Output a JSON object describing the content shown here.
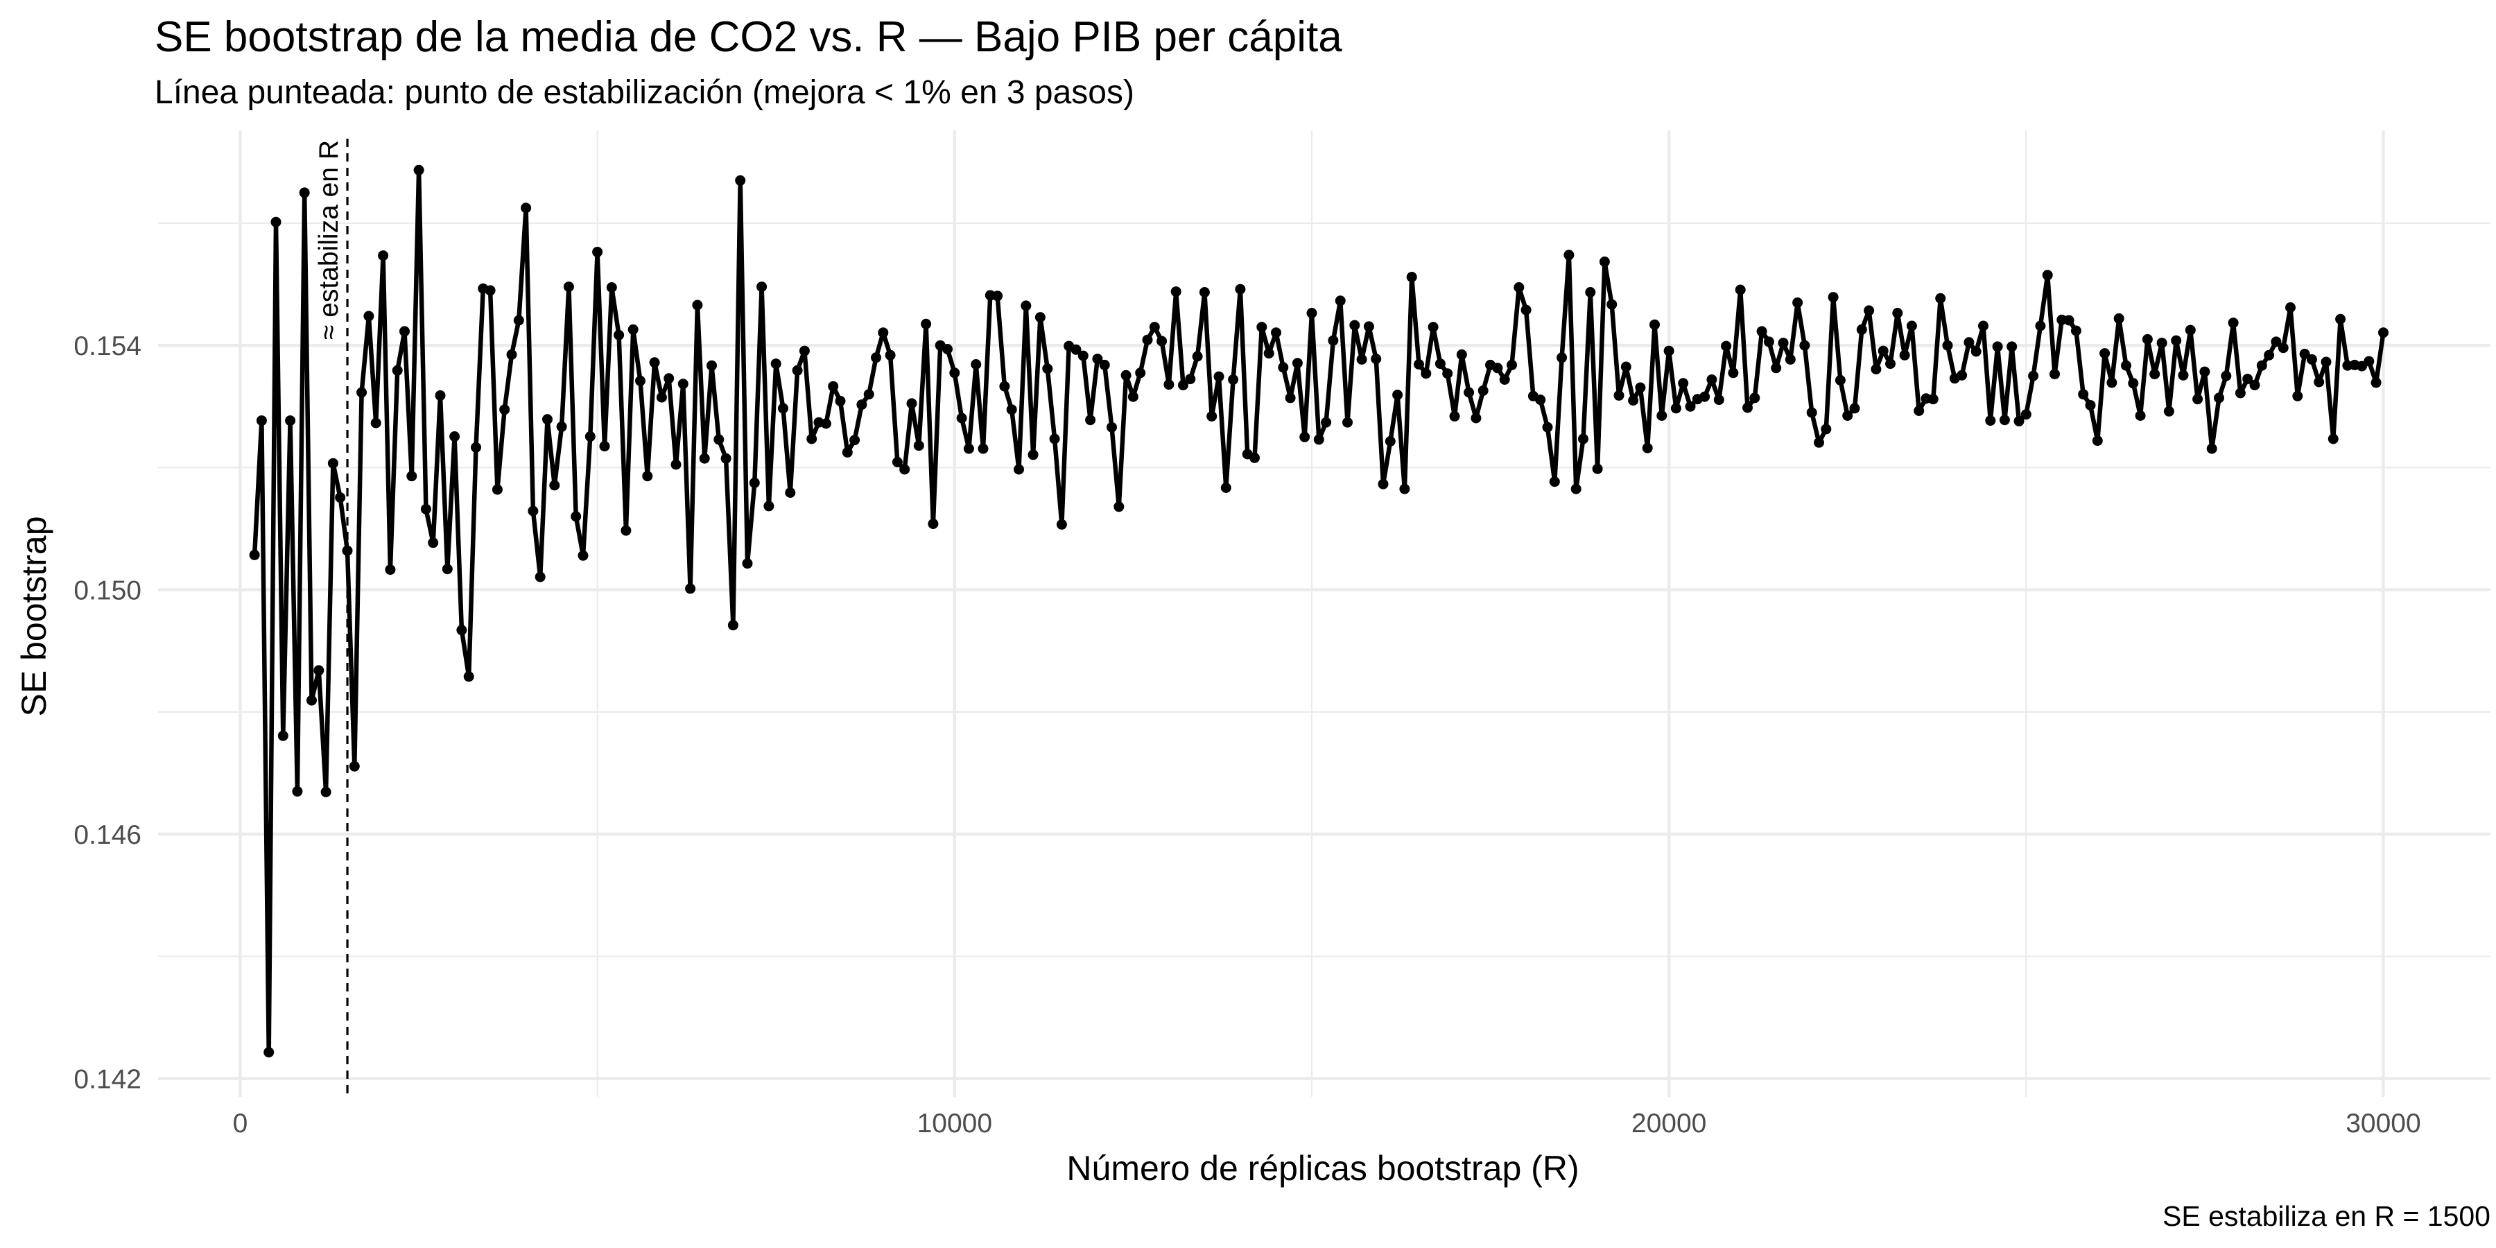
{
  "chart_data": {
    "type": "line",
    "title": "SE bootstrap de la media de CO2 vs. R — Bajo PIB per cápita",
    "subtitle": "Línea punteada: punto de estabilización (mejora < 1% en 3 pasos)",
    "caption": "SE estabiliza en R = 1500",
    "xlabel": "Número de réplicas bootstrap (R)",
    "ylabel": "SE bootstrap",
    "xlim": [
      -1150,
      31500
    ],
    "ylim": [
      0.1417,
      0.15752
    ],
    "xticks": [
      0,
      10000,
      20000,
      30000
    ],
    "xtick_labels": [
      "0",
      "10000",
      "20000",
      "30000"
    ],
    "yticks": [
      0.142,
      0.146,
      0.15,
      0.154
    ],
    "ytick_labels": [
      "0.142",
      "0.146",
      "0.150",
      "0.154"
    ],
    "grid": true,
    "vline": {
      "x": 1500,
      "label": "≈ estabiliza en R"
    },
    "colors": {
      "line": "#000000",
      "grid": "#ebebeb",
      "tick_text": "#4d4d4d"
    },
    "series": [
      {
        "points": [
          [
            200,
            0.15057
          ],
          [
            300,
            0.15277
          ],
          [
            400,
            0.14243
          ],
          [
            500,
            0.15602
          ],
          [
            600,
            0.14761
          ],
          [
            700,
            0.15277
          ],
          [
            800,
            0.1467
          ],
          [
            900,
            0.1565
          ],
          [
            1000,
            0.14819
          ],
          [
            1100,
            0.14868
          ],
          [
            1200,
            0.14669
          ],
          [
            1300,
            0.15207
          ],
          [
            1400,
            0.15151
          ],
          [
            1500,
            0.15064
          ],
          [
            1600,
            0.14711
          ],
          [
            1700,
            0.15323
          ],
          [
            1800,
            0.15448
          ],
          [
            1900,
            0.15273
          ],
          [
            2000,
            0.15547
          ],
          [
            2100,
            0.15033
          ],
          [
            2200,
            0.15359
          ],
          [
            2300,
            0.15423
          ],
          [
            2400,
            0.15186
          ],
          [
            2500,
            0.15687
          ],
          [
            2600,
            0.15132
          ],
          [
            2700,
            0.15077
          ],
          [
            2800,
            0.15318
          ],
          [
            2900,
            0.15034
          ],
          [
            3000,
            0.15251
          ],
          [
            3100,
            0.14934
          ],
          [
            3200,
            0.14858
          ],
          [
            3300,
            0.15233
          ],
          [
            3400,
            0.15493
          ],
          [
            3500,
            0.1549
          ],
          [
            3600,
            0.15164
          ],
          [
            3700,
            0.15295
          ],
          [
            3800,
            0.15385
          ],
          [
            3900,
            0.15441
          ],
          [
            4000,
            0.15625
          ],
          [
            4100,
            0.15129
          ],
          [
            4200,
            0.15021
          ],
          [
            4300,
            0.15279
          ],
          [
            4400,
            0.15171
          ],
          [
            4500,
            0.15267
          ],
          [
            4600,
            0.15496
          ],
          [
            4700,
            0.1512
          ],
          [
            4800,
            0.15056
          ],
          [
            4900,
            0.15251
          ],
          [
            5000,
            0.15553
          ],
          [
            5100,
            0.15235
          ],
          [
            5200,
            0.15495
          ],
          [
            5300,
            0.15417
          ],
          [
            5400,
            0.15097
          ],
          [
            5500,
            0.15426
          ],
          [
            5600,
            0.15342
          ],
          [
            5700,
            0.15186
          ],
          [
            5800,
            0.15372
          ],
          [
            5900,
            0.15315
          ],
          [
            6000,
            0.15346
          ],
          [
            6100,
            0.15205
          ],
          [
            6200,
            0.15337
          ],
          [
            6300,
            0.15002
          ],
          [
            6400,
            0.15466
          ],
          [
            6500,
            0.15215
          ],
          [
            6600,
            0.15367
          ],
          [
            6700,
            0.15246
          ],
          [
            6800,
            0.15215
          ],
          [
            6900,
            0.14942
          ],
          [
            7000,
            0.1567
          ],
          [
            7100,
            0.15043
          ],
          [
            7200,
            0.15175
          ],
          [
            7300,
            0.15496
          ],
          [
            7400,
            0.15137
          ],
          [
            7500,
            0.1537
          ],
          [
            7600,
            0.15297
          ],
          [
            7700,
            0.15159
          ],
          [
            7800,
            0.15359
          ],
          [
            7900,
            0.15391
          ],
          [
            8000,
            0.15247
          ],
          [
            8100,
            0.15274
          ],
          [
            8200,
            0.15272
          ],
          [
            8300,
            0.15333
          ],
          [
            8400,
            0.15309
          ],
          [
            8500,
            0.15225
          ],
          [
            8600,
            0.15245
          ],
          [
            8700,
            0.15303
          ],
          [
            8800,
            0.1532
          ],
          [
            8900,
            0.1538
          ],
          [
            9000,
            0.15421
          ],
          [
            9100,
            0.15384
          ],
          [
            9200,
            0.15209
          ],
          [
            9300,
            0.15197
          ],
          [
            9400,
            0.15305
          ],
          [
            9500,
            0.15236
          ],
          [
            9600,
            0.15435
          ],
          [
            9700,
            0.15108
          ],
          [
            9800,
            0.154
          ],
          [
            9900,
            0.15394
          ],
          [
            10000,
            0.15355
          ],
          [
            10100,
            0.15281
          ],
          [
            10200,
            0.15231
          ],
          [
            10300,
            0.15369
          ],
          [
            10400,
            0.15231
          ],
          [
            10500,
            0.15482
          ],
          [
            10600,
            0.15481
          ],
          [
            10700,
            0.15333
          ],
          [
            10800,
            0.15295
          ],
          [
            10900,
            0.15197
          ],
          [
            11000,
            0.15465
          ],
          [
            11100,
            0.15221
          ],
          [
            11200,
            0.15446
          ],
          [
            11300,
            0.15362
          ],
          [
            11400,
            0.15247
          ],
          [
            11500,
            0.15107
          ],
          [
            11600,
            0.15399
          ],
          [
            11700,
            0.15393
          ],
          [
            11800,
            0.15383
          ],
          [
            11900,
            0.15278
          ],
          [
            12000,
            0.15378
          ],
          [
            12100,
            0.15368
          ],
          [
            12200,
            0.15266
          ],
          [
            12300,
            0.15136
          ],
          [
            12400,
            0.15351
          ],
          [
            12500,
            0.15316
          ],
          [
            12600,
            0.15355
          ],
          [
            12700,
            0.15409
          ],
          [
            12800,
            0.1543
          ],
          [
            12900,
            0.15407
          ],
          [
            13000,
            0.15336
          ],
          [
            13100,
            0.15488
          ],
          [
            13200,
            0.15335
          ],
          [
            13300,
            0.15345
          ],
          [
            13400,
            0.15382
          ],
          [
            13500,
            0.15487
          ],
          [
            13600,
            0.15284
          ],
          [
            13700,
            0.15349
          ],
          [
            13800,
            0.15167
          ],
          [
            13900,
            0.15344
          ],
          [
            14000,
            0.15492
          ],
          [
            14100,
            0.15222
          ],
          [
            14200,
            0.15216
          ],
          [
            14300,
            0.1543
          ],
          [
            14400,
            0.15387
          ],
          [
            14500,
            0.15421
          ],
          [
            14600,
            0.15364
          ],
          [
            14700,
            0.15314
          ],
          [
            14800,
            0.15371
          ],
          [
            14900,
            0.1525
          ],
          [
            15000,
            0.15453
          ],
          [
            15100,
            0.15246
          ],
          [
            15200,
            0.15274
          ],
          [
            15300,
            0.15408
          ],
          [
            15400,
            0.15473
          ],
          [
            15500,
            0.15274
          ],
          [
            15600,
            0.15433
          ],
          [
            15700,
            0.15377
          ],
          [
            15800,
            0.15431
          ],
          [
            15900,
            0.15378
          ],
          [
            16000,
            0.15173
          ],
          [
            16100,
            0.15243
          ],
          [
            16200,
            0.15319
          ],
          [
            16300,
            0.15165
          ],
          [
            16400,
            0.15512
          ],
          [
            16500,
            0.15369
          ],
          [
            16600,
            0.15354
          ],
          [
            16700,
            0.1543
          ],
          [
            16800,
            0.1537
          ],
          [
            16900,
            0.15354
          ],
          [
            17000,
            0.15284
          ],
          [
            17100,
            0.15385
          ],
          [
            17200,
            0.15323
          ],
          [
            17300,
            0.15281
          ],
          [
            17400,
            0.15326
          ],
          [
            17500,
            0.15368
          ],
          [
            17600,
            0.15363
          ],
          [
            17700,
            0.15344
          ],
          [
            17800,
            0.15368
          ],
          [
            17900,
            0.15495
          ],
          [
            18000,
            0.15458
          ],
          [
            18100,
            0.15317
          ],
          [
            18200,
            0.15311
          ],
          [
            18300,
            0.15266
          ],
          [
            18400,
            0.15177
          ],
          [
            18500,
            0.1538
          ],
          [
            18600,
            0.15548
          ],
          [
            18700,
            0.15165
          ],
          [
            18800,
            0.15247
          ],
          [
            18900,
            0.15487
          ],
          [
            19000,
            0.15198
          ],
          [
            19100,
            0.15537
          ],
          [
            19200,
            0.15467
          ],
          [
            19300,
            0.15318
          ],
          [
            19400,
            0.15365
          ],
          [
            19500,
            0.1531
          ],
          [
            19600,
            0.15331
          ],
          [
            19700,
            0.15232
          ],
          [
            19800,
            0.15434
          ],
          [
            19900,
            0.15285
          ],
          [
            20000,
            0.15391
          ],
          [
            20100,
            0.15297
          ],
          [
            20200,
            0.15338
          ],
          [
            20300,
            0.153
          ],
          [
            20400,
            0.15312
          ],
          [
            20500,
            0.15316
          ],
          [
            20600,
            0.15344
          ],
          [
            20700,
            0.15311
          ],
          [
            20800,
            0.15399
          ],
          [
            20900,
            0.15355
          ],
          [
            21000,
            0.15491
          ],
          [
            21100,
            0.15298
          ],
          [
            21200,
            0.15314
          ],
          [
            21300,
            0.15423
          ],
          [
            21400,
            0.15406
          ],
          [
            21500,
            0.15363
          ],
          [
            21600,
            0.15404
          ],
          [
            21700,
            0.15377
          ],
          [
            21800,
            0.1547
          ],
          [
            21900,
            0.154
          ],
          [
            22000,
            0.1529
          ],
          [
            22100,
            0.15241
          ],
          [
            22200,
            0.15263
          ],
          [
            22300,
            0.15479
          ],
          [
            22400,
            0.15343
          ],
          [
            22500,
            0.15285
          ],
          [
            22600,
            0.15297
          ],
          [
            22700,
            0.15426
          ],
          [
            22800,
            0.15457
          ],
          [
            22900,
            0.15361
          ],
          [
            23000,
            0.15391
          ],
          [
            23100,
            0.1537
          ],
          [
            23200,
            0.15453
          ],
          [
            23300,
            0.15384
          ],
          [
            23400,
            0.15432
          ],
          [
            23500,
            0.15293
          ],
          [
            23600,
            0.15313
          ],
          [
            23700,
            0.15312
          ],
          [
            23800,
            0.15477
          ],
          [
            23900,
            0.154
          ],
          [
            24000,
            0.15346
          ],
          [
            24100,
            0.15351
          ],
          [
            24200,
            0.15405
          ],
          [
            24300,
            0.1539
          ],
          [
            24400,
            0.15432
          ],
          [
            24500,
            0.15277
          ],
          [
            24600,
            0.15398
          ],
          [
            24700,
            0.15278
          ],
          [
            24800,
            0.15398
          ],
          [
            24900,
            0.15276
          ],
          [
            25000,
            0.15287
          ],
          [
            25100,
            0.1535
          ],
          [
            25200,
            0.15432
          ],
          [
            25300,
            0.15515
          ],
          [
            25400,
            0.15353
          ],
          [
            25500,
            0.15442
          ],
          [
            25600,
            0.15441
          ],
          [
            25700,
            0.15424
          ],
          [
            25800,
            0.1532
          ],
          [
            25900,
            0.15302
          ],
          [
            26000,
            0.15244
          ],
          [
            26100,
            0.15387
          ],
          [
            26200,
            0.15339
          ],
          [
            26300,
            0.15444
          ],
          [
            26400,
            0.15367
          ],
          [
            26500,
            0.15338
          ],
          [
            26600,
            0.15285
          ],
          [
            26700,
            0.1541
          ],
          [
            26800,
            0.15353
          ],
          [
            26900,
            0.15404
          ],
          [
            27000,
            0.15292
          ],
          [
            27100,
            0.15408
          ],
          [
            27200,
            0.15351
          ],
          [
            27300,
            0.15425
          ],
          [
            27400,
            0.15312
          ],
          [
            27500,
            0.15357
          ],
          [
            27600,
            0.15231
          ],
          [
            27700,
            0.15314
          ],
          [
            27800,
            0.1535
          ],
          [
            27900,
            0.15437
          ],
          [
            28000,
            0.15322
          ],
          [
            28100,
            0.15345
          ],
          [
            28200,
            0.15335
          ],
          [
            28300,
            0.15367
          ],
          [
            28400,
            0.15384
          ],
          [
            28500,
            0.15406
          ],
          [
            28600,
            0.15396
          ],
          [
            28700,
            0.15462
          ],
          [
            28800,
            0.15317
          ],
          [
            28900,
            0.15386
          ],
          [
            29000,
            0.15377
          ],
          [
            29100,
            0.1534
          ],
          [
            29200,
            0.15373
          ],
          [
            29300,
            0.15247
          ],
          [
            29400,
            0.15443
          ],
          [
            29500,
            0.15367
          ],
          [
            29600,
            0.15368
          ],
          [
            29700,
            0.15366
          ],
          [
            29800,
            0.15374
          ],
          [
            29900,
            0.15339
          ],
          [
            30000,
            0.15421
          ]
        ]
      }
    ]
  }
}
